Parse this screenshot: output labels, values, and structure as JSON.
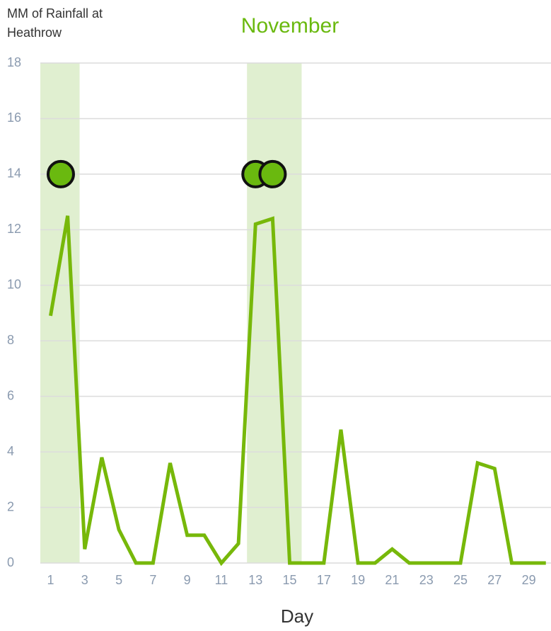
{
  "chart_data": {
    "type": "line",
    "title": "November",
    "y_label": "MM of Rainfall at Heathrow",
    "x_label": "Day",
    "x": [
      1,
      2,
      3,
      4,
      5,
      6,
      7,
      8,
      9,
      10,
      11,
      12,
      13,
      14,
      15,
      16,
      17,
      18,
      19,
      20,
      21,
      22,
      23,
      24,
      25,
      26,
      27,
      28,
      29,
      30
    ],
    "series": [
      {
        "name": "Rainfall",
        "color": "#77b80a",
        "values": [
          8.9,
          12.5,
          0.5,
          3.8,
          1.2,
          0,
          0,
          3.6,
          1.0,
          1.0,
          0,
          0.7,
          12.2,
          12.4,
          0,
          0,
          0,
          4.8,
          0,
          0,
          0.5,
          0,
          0,
          0,
          0,
          3.6,
          3.4,
          0,
          0,
          0
        ]
      }
    ],
    "markers": {
      "color": "#6ab90f",
      "x": [
        1.6,
        13,
        14
      ],
      "y": [
        14,
        14,
        14
      ]
    },
    "highlight_ranges": [
      [
        0.4,
        2.7
      ],
      [
        12.5,
        15.7
      ]
    ],
    "highlight_color": "#e0efd0",
    "xlim": [
      0.4,
      30.3
    ],
    "ylim": [
      0,
      18
    ],
    "xticks": [
      1,
      3,
      5,
      7,
      9,
      11,
      13,
      15,
      17,
      19,
      21,
      23,
      25,
      27,
      29
    ],
    "yticks": [
      0,
      2,
      4,
      6,
      8,
      10,
      12,
      14,
      16,
      18
    ],
    "grid": true
  }
}
